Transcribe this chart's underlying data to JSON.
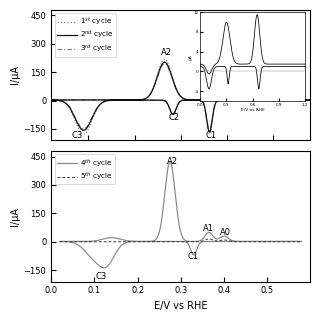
{
  "top_panel": {
    "ylim": [
      -210,
      480
    ],
    "yticks": [
      -150,
      0,
      150,
      300,
      450
    ],
    "ylabel": "I/μA",
    "xlim": [
      0.02,
      0.58
    ],
    "xticks": [
      0.1,
      0.2,
      0.3,
      0.4,
      0.5
    ]
  },
  "bottom_panel": {
    "ylim": [
      -210,
      480
    ],
    "yticks": [
      -150,
      0,
      150,
      300,
      450
    ],
    "ylabel": "I/μA",
    "xlabel": "E/V vs RHE",
    "xlim": [
      0.0,
      0.6
    ],
    "xticks": [
      0.0,
      0.1,
      0.2,
      0.3,
      0.4,
      0.5
    ]
  },
  "anno_fs": 6.0,
  "legend_fs": 5.2
}
